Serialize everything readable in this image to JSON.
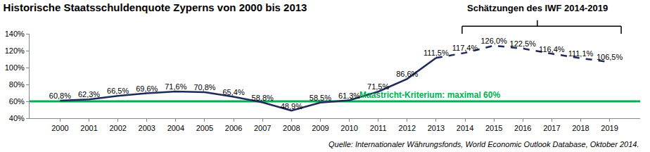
{
  "chart_data": {
    "type": "line",
    "title": "Historische Staatsschuldenquote Zyperns von 2000 bis 2013",
    "categories": [
      "2000",
      "2001",
      "2002",
      "2003",
      "2004",
      "2005",
      "2006",
      "2007",
      "2008",
      "2009",
      "2010",
      "2011",
      "2012",
      "2013",
      "2014",
      "2015",
      "2016",
      "2017",
      "2018",
      "2019"
    ],
    "series": [
      {
        "color": "#1f2a5c",
        "line_style": "solid",
        "values": [
          60.8,
          62.3,
          66.5,
          69.6,
          71.6,
          70.8,
          65.4,
          58.8,
          48.9,
          58.5,
          61.3,
          71.5,
          86.6,
          111.5,
          null,
          null,
          null,
          null,
          null,
          null
        ],
        "value_labels": [
          "60,8%",
          "62,3%",
          "66,5%",
          "69,6%",
          "71,6%",
          "70,8%",
          "65,4%",
          "58,8%",
          "48,9%",
          "58,5%",
          "61,3%",
          "71,5%",
          "86,6%",
          "111,5%",
          null,
          null,
          null,
          null,
          null,
          null
        ]
      },
      {
        "color": "#1f2a5c",
        "line_style": "dash",
        "values": [
          null,
          null,
          null,
          null,
          null,
          null,
          null,
          null,
          null,
          null,
          null,
          null,
          null,
          111.5,
          117.4,
          126.0,
          122.5,
          116.4,
          111.1,
          106.5
        ],
        "value_labels": [
          null,
          null,
          null,
          null,
          null,
          null,
          null,
          null,
          null,
          null,
          null,
          null,
          null,
          null,
          "117,4%",
          "126,0%",
          "122,5%",
          "116,4%",
          "111,1%",
          "106,5%"
        ]
      }
    ],
    "reference_line": {
      "value": 60,
      "label": "Maastricht-Kriterium: maximal 60%",
      "color": "#00b050"
    },
    "bracket": {
      "text": "Schätzungen des IWF 2014-2019",
      "from": "2014",
      "to": "2019"
    },
    "source": "Quelle: Internationaler Währungsfonds, World Economic Outlook Database, Oktober 2014.",
    "ylim": [
      40,
      140
    ],
    "yticks": [
      {
        "value": 40,
        "label": "40%"
      },
      {
        "value": 60,
        "label": "60%"
      },
      {
        "value": 80,
        "label": "80%"
      },
      {
        "value": 100,
        "label": "100%"
      },
      {
        "value": 120,
        "label": "120%"
      },
      {
        "value": 140,
        "label": "140%"
      }
    ],
    "grid": false,
    "data_labels": true
  }
}
